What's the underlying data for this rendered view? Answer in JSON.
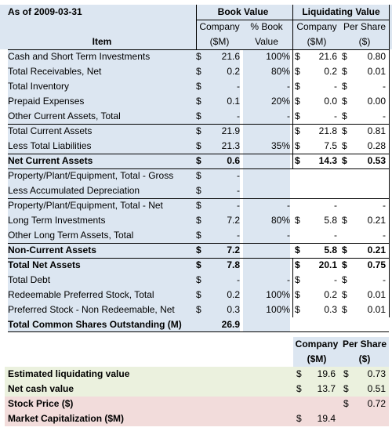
{
  "header": {
    "as_of": "As of 2009-03-31",
    "book_value": "Book Value",
    "liquidating_value": "Liquidating Value",
    "item": "Item",
    "company": "Company",
    "sm": "($M)",
    "pct_book": "% Book",
    "value": "Value",
    "per_share": "Per Share",
    "dollar": "($)"
  },
  "rows": [
    {
      "label": "Cash and Short Term Investments",
      "bd": "$",
      "bv": "21.6",
      "pct": "100%",
      "ld": "$",
      "lv": "21.6",
      "pd": "$",
      "pv": "0.80"
    },
    {
      "label": "Total Receivables, Net",
      "bd": "$",
      "bv": "0.2",
      "pct": "80%",
      "ld": "$",
      "lv": "0.2",
      "pd": "$",
      "pv": "0.01"
    },
    {
      "label": "Total Inventory",
      "bd": "$",
      "bv": "-",
      "pct": "-",
      "ld": "$",
      "lv": "-",
      "pd": "$",
      "pv": "-"
    },
    {
      "label": "Prepaid Expenses",
      "bd": "$",
      "bv": "0.1",
      "pct": "20%",
      "ld": "$",
      "lv": "0.0",
      "pd": "$",
      "pv": "0.00"
    },
    {
      "label": "Other Current Assets, Total",
      "bd": "$",
      "bv": "-",
      "pct": "-",
      "ld": "$",
      "lv": "-",
      "pd": "$",
      "pv": "-"
    },
    {
      "label": "Total Current Assets",
      "bd": "$",
      "bv": "21.9",
      "pct": "",
      "ld": "$",
      "lv": "21.8",
      "pd": "$",
      "pv": "0.81"
    },
    {
      "label": "Less Total Liabilities",
      "bd": "$",
      "bv": "21.3",
      "pct": "35%",
      "ld": "$",
      "lv": "7.5",
      "pd": "$",
      "pv": "0.28"
    },
    {
      "label": "Net Current Assets",
      "bd": "$",
      "bv": "0.6",
      "pct": "",
      "ld": "$",
      "lv": "14.3",
      "pd": "$",
      "pv": "0.53"
    },
    {
      "label": "Property/Plant/Equipment, Total - Gross",
      "bd": "$",
      "bv": "-",
      "pct": "",
      "ld": "",
      "lv": "",
      "pd": "",
      "pv": ""
    },
    {
      "label": "Less Accumulated Depreciation",
      "bd": "$",
      "bv": "-",
      "pct": "",
      "ld": "",
      "lv": "",
      "pd": "",
      "pv": ""
    },
    {
      "label": "Property/Plant/Equipment, Total - Net",
      "bd": "$",
      "bv": "-",
      "pct": "-",
      "ld": "",
      "lv": "-",
      "pd": "",
      "pv": "-"
    },
    {
      "label": "Long Term Investments",
      "bd": "$",
      "bv": "7.2",
      "pct": "80%",
      "ld": "$",
      "lv": "5.8",
      "pd": "$",
      "pv": "0.21"
    },
    {
      "label": "Other Long Term Assets, Total",
      "bd": "$",
      "bv": "-",
      "pct": "-",
      "ld": "",
      "lv": "-",
      "pd": "",
      "pv": "-"
    },
    {
      "label": "Non-Current Assets",
      "bd": "$",
      "bv": "7.2",
      "pct": "",
      "ld": "$",
      "lv": "5.8",
      "pd": "$",
      "pv": "0.21"
    },
    {
      "label": "Total Net Assets",
      "bd": "$",
      "bv": "7.8",
      "pct": "",
      "ld": "$",
      "lv": "20.1",
      "pd": "$",
      "pv": "0.75"
    },
    {
      "label": "Total Debt",
      "bd": "$",
      "bv": "-",
      "pct": "-",
      "ld": "$",
      "lv": "-",
      "pd": "$",
      "pv": "-"
    },
    {
      "label": "Redeemable Preferred Stock, Total",
      "bd": "$",
      "bv": "0.2",
      "pct": "100%",
      "ld": "$",
      "lv": "0.2",
      "pd": "$",
      "pv": "0.01"
    },
    {
      "label": "Preferred Stock - Non Redeemable, Net",
      "bd": "$",
      "bv": "0.3",
      "pct": "100%",
      "ld": "$",
      "lv": "0.3",
      "pd": "$",
      "pv": "0.01"
    },
    {
      "label": "Total Common Shares Outstanding (M)",
      "bd": "",
      "bv": "26.9",
      "pct": "",
      "ld": "",
      "lv": "",
      "pd": "",
      "pv": ""
    }
  ],
  "summary_header": {
    "company": "Company",
    "per_share": "Per Share",
    "sm": "($M)",
    "dollar": "($)"
  },
  "summary": [
    {
      "label": "Estimated liquidating value",
      "cd": "$",
      "cv": "19.6",
      "pd": "$",
      "pv": "0.73"
    },
    {
      "label": "Net cash value",
      "cd": "$",
      "cv": "13.7",
      "pd": "$",
      "pv": "0.51"
    },
    {
      "label": "Stock Price ($)",
      "cd": "",
      "cv": "",
      "pd": "$",
      "pv": "0.72"
    },
    {
      "label": "Market Capitalization ($M)",
      "cd": "$",
      "cv": "19.4",
      "pd": "",
      "pv": ""
    }
  ]
}
